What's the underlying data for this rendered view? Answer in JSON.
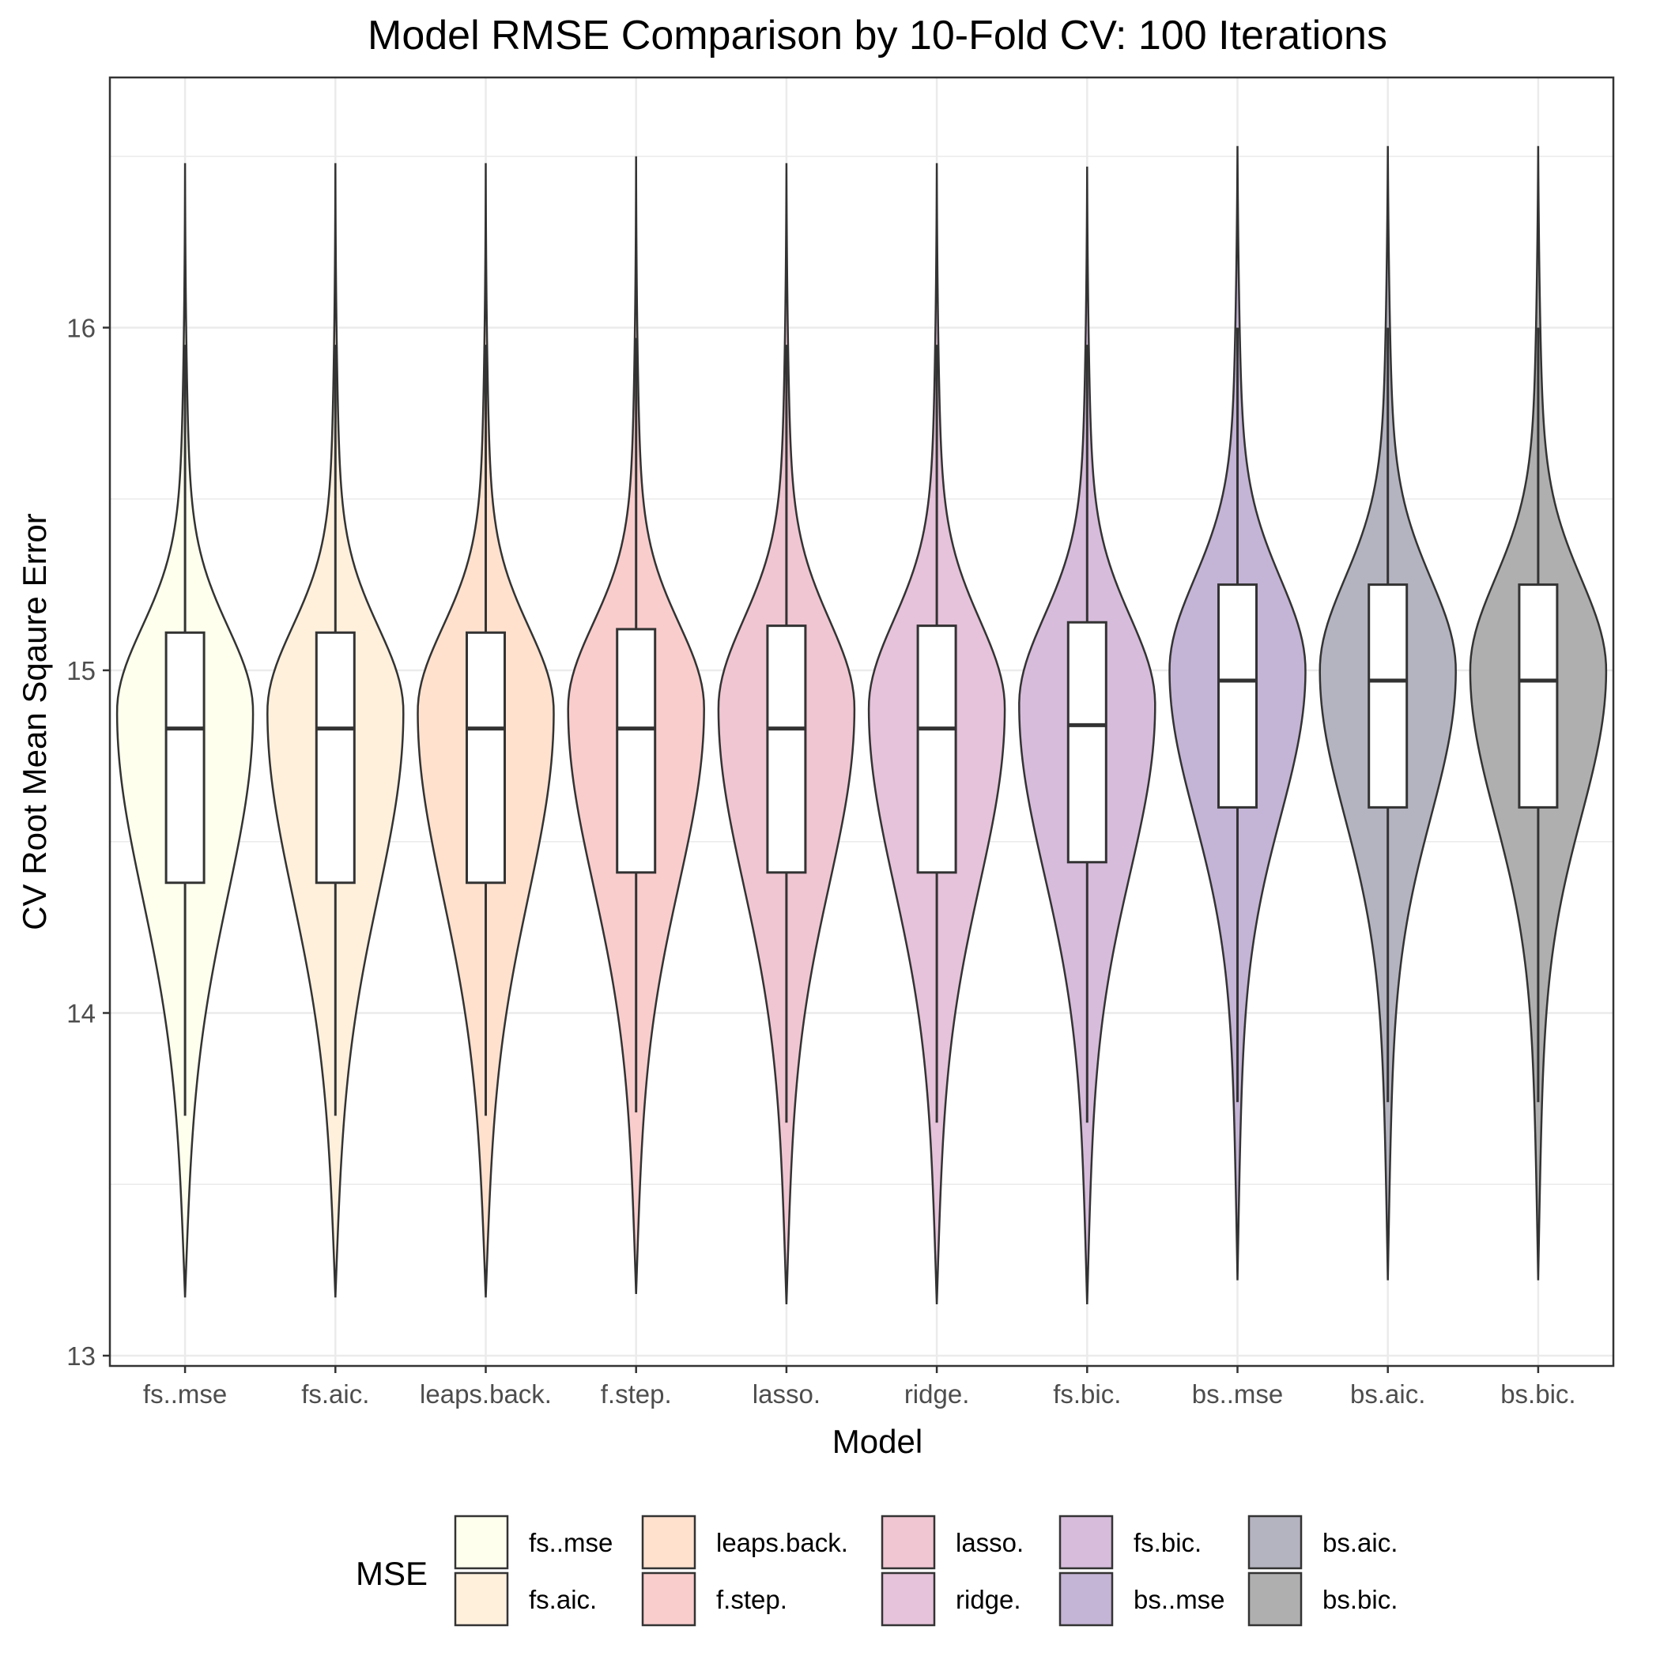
{
  "chart_data": {
    "type": "violin",
    "title": "Model RMSE Comparison by 10-Fold CV: 100 Iterations",
    "xlabel": "Model",
    "ylabel": "CV Root Mean Sqaure Error",
    "ylim": [
      12.97,
      16.73
    ],
    "yticks": [
      13,
      14,
      15,
      16
    ],
    "grid": true,
    "legend": {
      "title": "MSE",
      "position": "bottom",
      "columns": 5
    },
    "series": [
      {
        "category": "fs..mse",
        "name": "fs..mse",
        "color": "#FFFFEE",
        "min": 13.17,
        "q1": 14.38,
        "median": 14.83,
        "q3": 15.11,
        "max": 16.48,
        "whisker_low": 13.7,
        "whisker_high": 15.95,
        "mode": 14.88
      },
      {
        "category": "fs.aic.",
        "name": "fs.aic.",
        "color": "#FFF0DC",
        "min": 13.17,
        "q1": 14.38,
        "median": 14.83,
        "q3": 15.11,
        "max": 16.48,
        "whisker_low": 13.7,
        "whisker_high": 15.95,
        "mode": 14.88
      },
      {
        "category": "leaps.back.",
        "name": "leaps.back.",
        "color": "#FFE1CE",
        "min": 13.17,
        "q1": 14.38,
        "median": 14.83,
        "q3": 15.11,
        "max": 16.48,
        "whisker_low": 13.7,
        "whisker_high": 15.95,
        "mode": 14.88
      },
      {
        "category": "f.step.",
        "name": "f.step.",
        "color": "#FACDCD",
        "min": 13.18,
        "q1": 14.41,
        "median": 14.83,
        "q3": 15.12,
        "max": 16.5,
        "whisker_low": 13.71,
        "whisker_high": 15.97,
        "mode": 14.89
      },
      {
        "category": "lasso.",
        "name": "lasso.",
        "color": "#F1C6D3",
        "min": 13.15,
        "q1": 14.41,
        "median": 14.83,
        "q3": 15.13,
        "max": 16.48,
        "whisker_low": 13.68,
        "whisker_high": 15.95,
        "mode": 14.89
      },
      {
        "category": "ridge.",
        "name": "ridge.",
        "color": "#E6C3DA",
        "min": 13.15,
        "q1": 14.41,
        "median": 14.83,
        "q3": 15.13,
        "max": 16.48,
        "whisker_low": 13.68,
        "whisker_high": 15.95,
        "mode": 14.89
      },
      {
        "category": "fs.bic.",
        "name": "fs.bic.",
        "color": "#D7BCDC",
        "min": 13.15,
        "q1": 14.44,
        "median": 14.84,
        "q3": 15.14,
        "max": 16.47,
        "whisker_low": 13.68,
        "whisker_high": 15.95,
        "mode": 14.9
      },
      {
        "category": "bs..mse",
        "name": "bs..mse",
        "color": "#C4B4D6",
        "min": 13.22,
        "q1": 14.6,
        "median": 14.97,
        "q3": 15.25,
        "max": 16.53,
        "whisker_low": 13.74,
        "whisker_high": 16.0,
        "mode": 15.0
      },
      {
        "category": "bs.aic.",
        "name": "bs.aic.",
        "color": "#B4B3C0",
        "min": 13.22,
        "q1": 14.6,
        "median": 14.97,
        "q3": 15.25,
        "max": 16.53,
        "whisker_low": 13.74,
        "whisker_high": 16.0,
        "mode": 15.0
      },
      {
        "category": "bs.bic.",
        "name": "bs.bic.",
        "color": "#AFAFAF",
        "min": 13.22,
        "q1": 14.6,
        "median": 14.97,
        "q3": 15.25,
        "max": 16.53,
        "whisker_low": 13.74,
        "whisker_high": 16.0,
        "mode": 15.0
      }
    ]
  }
}
